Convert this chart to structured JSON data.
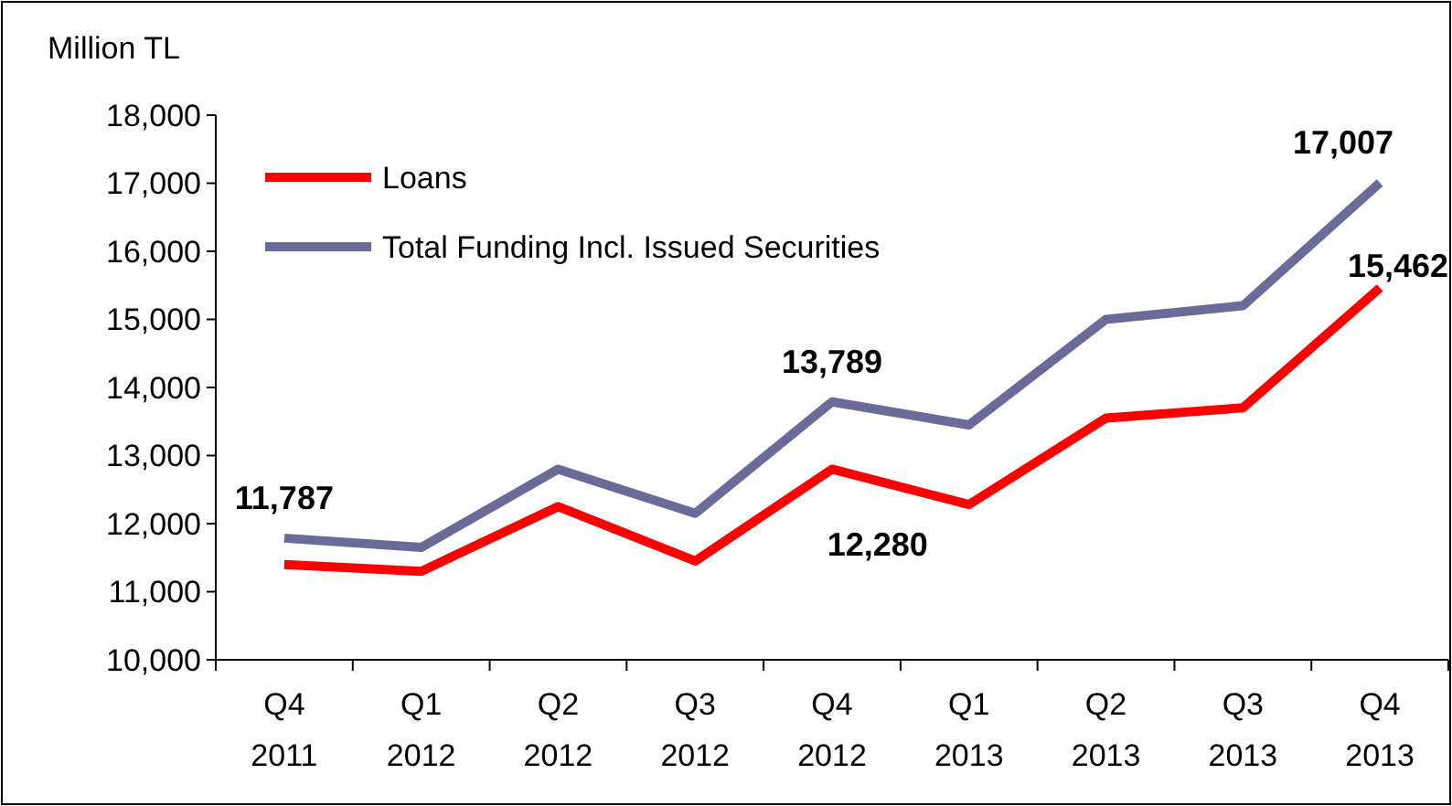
{
  "chart_data": {
    "type": "line",
    "ylabel": "Million TL",
    "categories": [
      "Q4 2011",
      "Q1 2012",
      "Q2 2012",
      "Q3 2012",
      "Q4 2012",
      "Q1 2013",
      "Q2 2013",
      "Q3 2013",
      "Q4 2013"
    ],
    "series": [
      {
        "name": "Loans",
        "color": "#ff0000",
        "values": [
          11400,
          11300,
          12250,
          11450,
          12800,
          12280,
          13550,
          13700,
          15462
        ],
        "value_labels": [
          null,
          null,
          null,
          null,
          null,
          "12,280",
          null,
          null,
          "15,462"
        ]
      },
      {
        "name": "Total Funding Incl. Issued Securities",
        "color": "#6b6b9a",
        "values": [
          11787,
          11650,
          12800,
          12150,
          13789,
          13450,
          15000,
          15200,
          17007
        ],
        "value_labels": [
          "11,787",
          null,
          null,
          null,
          "13,789",
          null,
          null,
          null,
          "17,007"
        ]
      }
    ],
    "ylim": [
      10000,
      18000
    ],
    "yticks": [
      {
        "value": 10000,
        "label": "10,000"
      },
      {
        "value": 11000,
        "label": "11,000"
      },
      {
        "value": 12000,
        "label": "12,000"
      },
      {
        "value": 13000,
        "label": "13,000"
      },
      {
        "value": 14000,
        "label": "14,000"
      },
      {
        "value": 15000,
        "label": "15,000"
      },
      {
        "value": 16000,
        "label": "16,000"
      },
      {
        "value": 17000,
        "label": "17,000"
      },
      {
        "value": 18000,
        "label": "18,000"
      }
    ],
    "grid": false,
    "legend": "top left",
    "marker": "none",
    "line_style": "solid"
  }
}
